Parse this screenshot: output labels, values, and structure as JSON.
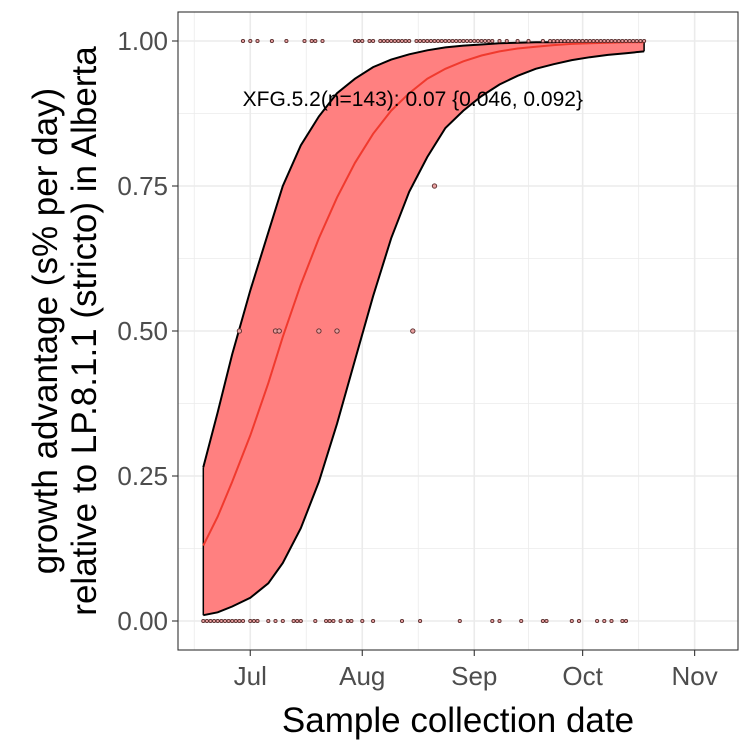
{
  "chart_data": {
    "type": "line",
    "xlabel": "Sample collection date",
    "ylabel_lines": [
      "growth advantage (s% per day)",
      "relative to LP.8.1.1 (stricto) in Alberta"
    ],
    "xlim": [
      "2025-06-11",
      "2025-11-13"
    ],
    "ylim": [
      -0.05,
      1.05
    ],
    "x_ticks": [
      {
        "date": "2025-07-01",
        "label": "Jul"
      },
      {
        "date": "2025-08-01",
        "label": "Aug"
      },
      {
        "date": "2025-09-01",
        "label": "Sep"
      },
      {
        "date": "2025-10-01",
        "label": "Oct"
      },
      {
        "date": "2025-11-01",
        "label": "Nov"
      }
    ],
    "y_ticks": [
      {
        "value": 0,
        "label": "0.00"
      },
      {
        "value": 0.25,
        "label": "0.25"
      },
      {
        "value": 0.5,
        "label": "0.50"
      },
      {
        "value": 0.75,
        "label": "0.75"
      },
      {
        "value": 1,
        "label": "1.00"
      }
    ],
    "grid": true,
    "annotation": {
      "text": "XFG.5.2(n=143): 0.07 {0.046, 0.092}",
      "date": "2025-08-15",
      "value": 0.9
    },
    "colors": {
      "fit": "#f8766d",
      "band": "#ff8080",
      "band_edge": "#000000",
      "point_fill": "#e8a0a0",
      "point_edge": "#5a2d2d",
      "grid": "#ebebeb",
      "panel_border": "#333333"
    },
    "series": [
      {
        "kind": "fit",
        "x": [
          "2025-06-18",
          "2025-06-22",
          "2025-06-26",
          "2025-07-01",
          "2025-07-06",
          "2025-07-10",
          "2025-07-15",
          "2025-07-20",
          "2025-07-25",
          "2025-07-30",
          "2025-08-04",
          "2025-08-09",
          "2025-08-14",
          "2025-08-19",
          "2025-08-24",
          "2025-08-29",
          "2025-09-03",
          "2025-09-08",
          "2025-09-13",
          "2025-09-18",
          "2025-09-23",
          "2025-09-28",
          "2025-10-03",
          "2025-10-08",
          "2025-10-13",
          "2025-10-18"
        ],
        "y": [
          0.13,
          0.18,
          0.24,
          0.32,
          0.41,
          0.49,
          0.58,
          0.66,
          0.73,
          0.79,
          0.84,
          0.88,
          0.91,
          0.935,
          0.952,
          0.965,
          0.975,
          0.982,
          0.987,
          0.99,
          0.993,
          0.995,
          0.996,
          0.997,
          0.998,
          0.998
        ],
        "lower": [
          0.01,
          0.015,
          0.025,
          0.04,
          0.065,
          0.1,
          0.16,
          0.24,
          0.34,
          0.45,
          0.56,
          0.66,
          0.74,
          0.8,
          0.85,
          0.88,
          0.905,
          0.925,
          0.94,
          0.952,
          0.96,
          0.967,
          0.972,
          0.976,
          0.979,
          0.982
        ],
        "upper": [
          0.265,
          0.36,
          0.46,
          0.57,
          0.67,
          0.75,
          0.82,
          0.87,
          0.91,
          0.935,
          0.955,
          0.968,
          0.977,
          0.984,
          0.989,
          0.992,
          0.994,
          0.996,
          0.997,
          0.998,
          0.998,
          0.999,
          0.999,
          0.999,
          1,
          1
        ]
      },
      {
        "kind": "points",
        "points": [
          {
            "date": "2025-06-18",
            "value": 0
          },
          {
            "date": "2025-06-19",
            "value": 0
          },
          {
            "date": "2025-06-20",
            "value": 0
          },
          {
            "date": "2025-06-21",
            "value": 0
          },
          {
            "date": "2025-06-22",
            "value": 0
          },
          {
            "date": "2025-06-23",
            "value": 0
          },
          {
            "date": "2025-06-24",
            "value": 0
          },
          {
            "date": "2025-06-25",
            "value": 0
          },
          {
            "date": "2025-06-26",
            "value": 0
          },
          {
            "date": "2025-06-27",
            "value": 0
          },
          {
            "date": "2025-06-28",
            "value": 0
          },
          {
            "date": "2025-06-29",
            "value": 0
          },
          {
            "date": "2025-07-01",
            "value": 0
          },
          {
            "date": "2025-07-02",
            "value": 0
          },
          {
            "date": "2025-07-03",
            "value": 0
          },
          {
            "date": "2025-07-06",
            "value": 0
          },
          {
            "date": "2025-07-08",
            "value": 0
          },
          {
            "date": "2025-07-10",
            "value": 0
          },
          {
            "date": "2025-07-13",
            "value": 0
          },
          {
            "date": "2025-07-14",
            "value": 0
          },
          {
            "date": "2025-07-15",
            "value": 0
          },
          {
            "date": "2025-07-19",
            "value": 0
          },
          {
            "date": "2025-07-22",
            "value": 0
          },
          {
            "date": "2025-07-23",
            "value": 0
          },
          {
            "date": "2025-07-24",
            "value": 0
          },
          {
            "date": "2025-07-26",
            "value": 0
          },
          {
            "date": "2025-07-28",
            "value": 0
          },
          {
            "date": "2025-07-29",
            "value": 0
          },
          {
            "date": "2025-08-01",
            "value": 0
          },
          {
            "date": "2025-08-04",
            "value": 0
          },
          {
            "date": "2025-08-12",
            "value": 0
          },
          {
            "date": "2025-08-17",
            "value": 0
          },
          {
            "date": "2025-08-28",
            "value": 0
          },
          {
            "date": "2025-09-06",
            "value": 0
          },
          {
            "date": "2025-09-08",
            "value": 0
          },
          {
            "date": "2025-09-14",
            "value": 0
          },
          {
            "date": "2025-09-20",
            "value": 0
          },
          {
            "date": "2025-09-21",
            "value": 0
          },
          {
            "date": "2025-09-28",
            "value": 0
          },
          {
            "date": "2025-09-30",
            "value": 0
          },
          {
            "date": "2025-10-05",
            "value": 0
          },
          {
            "date": "2025-10-07",
            "value": 0
          },
          {
            "date": "2025-10-09",
            "value": 0
          },
          {
            "date": "2025-10-12",
            "value": 0
          },
          {
            "date": "2025-10-13",
            "value": 0
          },
          {
            "date": "2025-06-28",
            "value": 0.5
          },
          {
            "date": "2025-07-08",
            "value": 0.5
          },
          {
            "date": "2025-07-09",
            "value": 0.5
          },
          {
            "date": "2025-07-20",
            "value": 0.5
          },
          {
            "date": "2025-07-25",
            "value": 0.5
          },
          {
            "date": "2025-08-15",
            "value": 0.5
          },
          {
            "date": "2025-08-21",
            "value": 0.75
          },
          {
            "date": "2025-06-29",
            "value": 1
          },
          {
            "date": "2025-07-01",
            "value": 1
          },
          {
            "date": "2025-07-03",
            "value": 1
          },
          {
            "date": "2025-07-07",
            "value": 1
          },
          {
            "date": "2025-07-11",
            "value": 1
          },
          {
            "date": "2025-07-16",
            "value": 1
          },
          {
            "date": "2025-07-18",
            "value": 1
          },
          {
            "date": "2025-07-19",
            "value": 1
          },
          {
            "date": "2025-07-21",
            "value": 1
          },
          {
            "date": "2025-07-30",
            "value": 1
          },
          {
            "date": "2025-07-31",
            "value": 1
          },
          {
            "date": "2025-08-01",
            "value": 1
          },
          {
            "date": "2025-08-03",
            "value": 1
          },
          {
            "date": "2025-08-04",
            "value": 1
          },
          {
            "date": "2025-08-06",
            "value": 1
          },
          {
            "date": "2025-08-07",
            "value": 1
          },
          {
            "date": "2025-08-08",
            "value": 1
          },
          {
            "date": "2025-08-09",
            "value": 1
          },
          {
            "date": "2025-08-10",
            "value": 1
          },
          {
            "date": "2025-08-11",
            "value": 1
          },
          {
            "date": "2025-08-12",
            "value": 1
          },
          {
            "date": "2025-08-13",
            "value": 1
          },
          {
            "date": "2025-08-14",
            "value": 1
          },
          {
            "date": "2025-08-16",
            "value": 1
          },
          {
            "date": "2025-08-17",
            "value": 1
          },
          {
            "date": "2025-08-18",
            "value": 1
          },
          {
            "date": "2025-08-19",
            "value": 1
          },
          {
            "date": "2025-08-20",
            "value": 1
          },
          {
            "date": "2025-08-21",
            "value": 1
          },
          {
            "date": "2025-08-22",
            "value": 1
          },
          {
            "date": "2025-08-23",
            "value": 1
          },
          {
            "date": "2025-08-24",
            "value": 1
          },
          {
            "date": "2025-08-25",
            "value": 1
          },
          {
            "date": "2025-08-26",
            "value": 1
          },
          {
            "date": "2025-08-27",
            "value": 1
          },
          {
            "date": "2025-08-28",
            "value": 1
          },
          {
            "date": "2025-08-29",
            "value": 1
          },
          {
            "date": "2025-08-30",
            "value": 1
          },
          {
            "date": "2025-08-31",
            "value": 1
          },
          {
            "date": "2025-09-01",
            "value": 1
          },
          {
            "date": "2025-09-02",
            "value": 1
          },
          {
            "date": "2025-09-03",
            "value": 1
          },
          {
            "date": "2025-09-04",
            "value": 1
          },
          {
            "date": "2025-09-05",
            "value": 1
          },
          {
            "date": "2025-09-06",
            "value": 1
          },
          {
            "date": "2025-09-08",
            "value": 1
          },
          {
            "date": "2025-09-10",
            "value": 1
          },
          {
            "date": "2025-09-13",
            "value": 1
          },
          {
            "date": "2025-09-16",
            "value": 1
          },
          {
            "date": "2025-09-20",
            "value": 1
          },
          {
            "date": "2025-09-22",
            "value": 1
          },
          {
            "date": "2025-09-23",
            "value": 1
          },
          {
            "date": "2025-09-24",
            "value": 1
          },
          {
            "date": "2025-09-25",
            "value": 1
          },
          {
            "date": "2025-09-26",
            "value": 1
          },
          {
            "date": "2025-09-27",
            "value": 1
          },
          {
            "date": "2025-09-28",
            "value": 1
          },
          {
            "date": "2025-09-29",
            "value": 1
          },
          {
            "date": "2025-09-30",
            "value": 1
          },
          {
            "date": "2025-10-01",
            "value": 1
          },
          {
            "date": "2025-10-02",
            "value": 1
          },
          {
            "date": "2025-10-03",
            "value": 1
          },
          {
            "date": "2025-10-04",
            "value": 1
          },
          {
            "date": "2025-10-05",
            "value": 1
          },
          {
            "date": "2025-10-06",
            "value": 1
          },
          {
            "date": "2025-10-07",
            "value": 1
          },
          {
            "date": "2025-10-08",
            "value": 1
          },
          {
            "date": "2025-10-09",
            "value": 1
          },
          {
            "date": "2025-10-10",
            "value": 1
          },
          {
            "date": "2025-10-11",
            "value": 1
          },
          {
            "date": "2025-10-12",
            "value": 1
          },
          {
            "date": "2025-10-13",
            "value": 1
          },
          {
            "date": "2025-10-14",
            "value": 1
          },
          {
            "date": "2025-10-15",
            "value": 1
          },
          {
            "date": "2025-10-16",
            "value": 1
          },
          {
            "date": "2025-10-17",
            "value": 1
          },
          {
            "date": "2025-10-18",
            "value": 1
          }
        ]
      }
    ]
  }
}
